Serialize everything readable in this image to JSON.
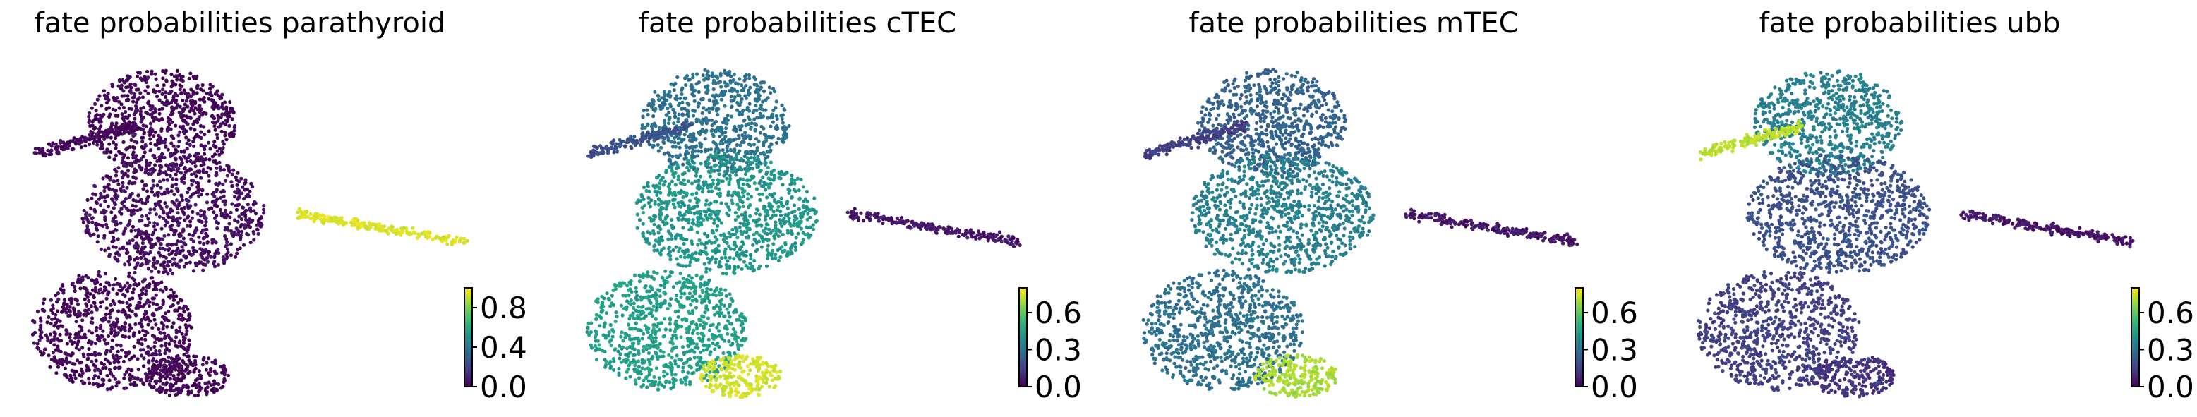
{
  "chart_data": [
    {
      "type": "scatter",
      "title": "fate probabilities parathyroid",
      "colormap": "viridis",
      "colorbar": {
        "min": 0.0,
        "max": 1.0,
        "ticks": [
          0.0,
          0.4,
          0.8
        ],
        "tick_labels": [
          "0.0",
          "0.4",
          "0.8"
        ]
      },
      "axes_visible": false,
      "grid": false,
      "regions": [
        {
          "name": "upper cluster",
          "value": 0.02
        },
        {
          "name": "left arm",
          "value": 0.02
        },
        {
          "name": "middle cluster",
          "value": 0.04
        },
        {
          "name": "bottom cluster",
          "value": 0.02
        },
        {
          "name": "bottom tip",
          "value": 0.02
        },
        {
          "name": "right arm",
          "value": 0.95
        }
      ]
    },
    {
      "type": "scatter",
      "title": "fate probabilities cTEC",
      "colormap": "viridis",
      "colorbar": {
        "min": 0.0,
        "max": 0.8,
        "ticks": [
          0.0,
          0.3,
          0.6
        ],
        "tick_labels": [
          "0.0",
          "0.3",
          "0.6"
        ]
      },
      "axes_visible": false,
      "grid": false,
      "regions": [
        {
          "name": "upper cluster",
          "value": 0.3
        },
        {
          "name": "left arm",
          "value": 0.2
        },
        {
          "name": "middle cluster",
          "value": 0.42
        },
        {
          "name": "bottom cluster",
          "value": 0.45
        },
        {
          "name": "bottom tip",
          "value": 0.75
        },
        {
          "name": "right arm",
          "value": 0.05
        }
      ]
    },
    {
      "type": "scatter",
      "title": "fate probabilities mTEC",
      "colormap": "viridis",
      "colorbar": {
        "min": 0.0,
        "max": 0.8,
        "ticks": [
          0.0,
          0.3,
          0.6
        ],
        "tick_labels": [
          "0.0",
          "0.3",
          "0.6"
        ]
      },
      "axes_visible": false,
      "grid": false,
      "regions": [
        {
          "name": "upper cluster",
          "value": 0.25
        },
        {
          "name": "left arm",
          "value": 0.15
        },
        {
          "name": "middle cluster",
          "value": 0.35
        },
        {
          "name": "bottom cluster",
          "value": 0.3
        },
        {
          "name": "bottom tip",
          "value": 0.7
        },
        {
          "name": "right arm",
          "value": 0.05
        }
      ]
    },
    {
      "type": "scatter",
      "title": "fate probabilities ubb",
      "colormap": "viridis",
      "colorbar": {
        "min": 0.0,
        "max": 0.8,
        "ticks": [
          0.0,
          0.3,
          0.6
        ],
        "tick_labels": [
          "0.0",
          "0.3",
          "0.6"
        ]
      },
      "axes_visible": false,
      "grid": false,
      "regions": [
        {
          "name": "upper cluster",
          "value": 0.35
        },
        {
          "name": "left arm",
          "value": 0.72
        },
        {
          "name": "middle cluster",
          "value": 0.2
        },
        {
          "name": "bottom cluster",
          "value": 0.15
        },
        {
          "name": "bottom tip",
          "value": 0.12
        },
        {
          "name": "right arm",
          "value": 0.05
        }
      ]
    }
  ]
}
